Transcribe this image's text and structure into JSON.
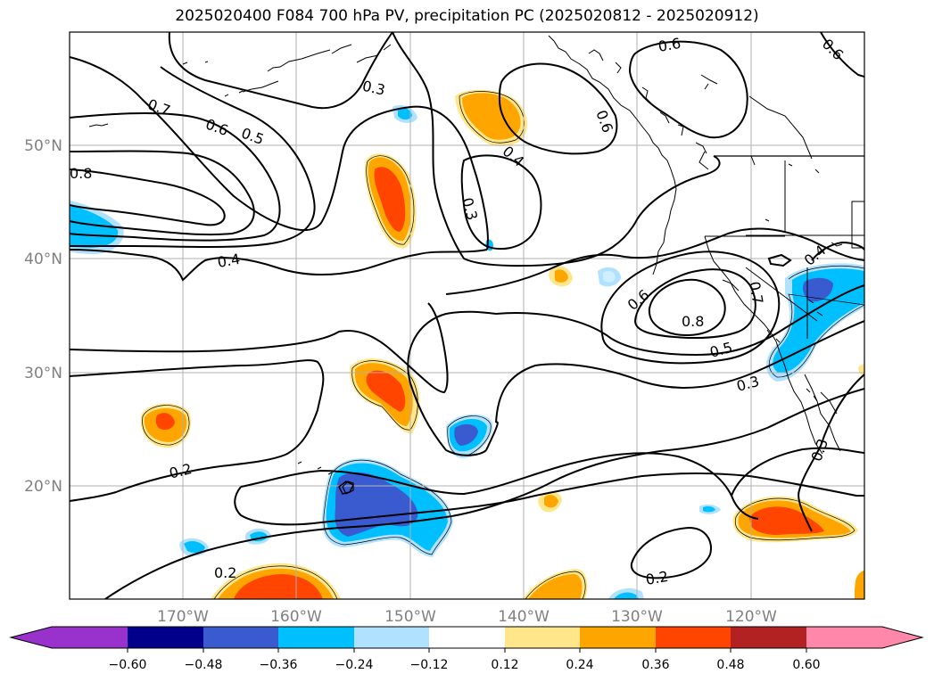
{
  "title": "2025020400 F084 700 hPa PV, precipitation PC (2025020812 - 2025020912)",
  "map": {
    "lat_labels": [
      {
        "value": 50,
        "text": "50°N"
      },
      {
        "value": 40,
        "text": "40°N"
      },
      {
        "value": 30,
        "text": "30°N"
      },
      {
        "value": 20,
        "text": "20°N"
      }
    ],
    "lon_labels": [
      {
        "value": -170,
        "text": "170°W"
      },
      {
        "value": -160,
        "text": "160°W"
      },
      {
        "value": -150,
        "text": "150°W"
      },
      {
        "value": -140,
        "text": "140°W"
      },
      {
        "value": -130,
        "text": "130°W"
      },
      {
        "value": -120,
        "text": "120°W"
      }
    ],
    "contour_labels": [
      "0.8",
      "0.7",
      "0.6",
      "0.5",
      "0.4",
      "0.3",
      "0.2",
      "0.6",
      "0.6",
      "0.4",
      "0.3",
      "0.6",
      "0.8",
      "0.7",
      "0.5",
      "0.3",
      "0.4",
      "0.3",
      "0.2",
      "0.2"
    ]
  },
  "colorbar": {
    "ticks": [
      "−0.60",
      "−0.48",
      "−0.36",
      "−0.24",
      "−0.12",
      "0.12",
      "0.24",
      "0.36",
      "0.48",
      "0.60"
    ],
    "colors": {
      "lt_-0.60": "#9932cc",
      "-0.60_-0.48": "#00008b",
      "-0.48_-0.36": "#3a5bd0",
      "-0.36_-0.24": "#00bfff",
      "-0.24_-0.12": "#b0e2ff",
      "-0.12_0.12": "#ffffff",
      "0.12_0.24": "#ffe68a",
      "0.24_0.36": "#ffa500",
      "0.36_0.48": "#ff4500",
      "0.48_0.60": "#b22222",
      "gt_0.60": "#ff88aa"
    }
  }
}
